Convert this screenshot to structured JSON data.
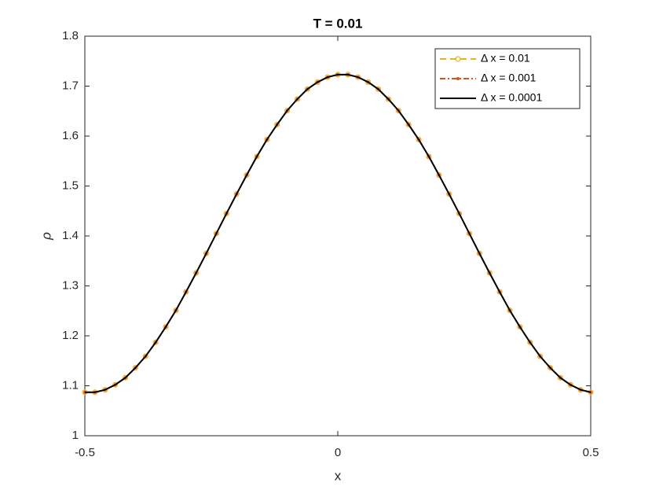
{
  "chart_data": {
    "type": "line",
    "title": "T = 0.01",
    "x_label": "x",
    "y_label": "ρ",
    "x": [
      -0.5,
      -0.48,
      -0.46,
      -0.44,
      -0.42,
      -0.4,
      -0.38,
      -0.36,
      -0.34,
      -0.32,
      -0.3,
      -0.28,
      -0.26,
      -0.24,
      -0.22,
      -0.2,
      -0.18,
      -0.16,
      -0.14,
      -0.12,
      -0.1,
      -0.08,
      -0.06,
      -0.04,
      -0.02,
      0,
      0.02,
      0.04,
      0.06,
      0.08,
      0.1,
      0.12,
      0.14,
      0.16,
      0.18,
      0.2,
      0.22,
      0.24,
      0.26,
      0.28,
      0.3,
      0.32,
      0.34,
      0.36,
      0.38,
      0.4,
      0.42,
      0.44,
      0.46,
      0.48,
      0.5
    ],
    "series": [
      {
        "name": "Δ x = 0.01",
        "color": "#EDB120",
        "dash": "8 5",
        "marker": "circle",
        "values": [
          1.087,
          1.087,
          1.092,
          1.102,
          1.116,
          1.136,
          1.159,
          1.187,
          1.218,
          1.251,
          1.288,
          1.326,
          1.365,
          1.405,
          1.445,
          1.484,
          1.522,
          1.559,
          1.593,
          1.623,
          1.651,
          1.674,
          1.694,
          1.708,
          1.718,
          1.723,
          1.723,
          1.718,
          1.708,
          1.694,
          1.674,
          1.651,
          1.623,
          1.593,
          1.559,
          1.522,
          1.484,
          1.445,
          1.405,
          1.365,
          1.326,
          1.288,
          1.251,
          1.218,
          1.187,
          1.159,
          1.136,
          1.116,
          1.102,
          1.092,
          1.087
        ]
      },
      {
        "name": "Δ x = 0.001",
        "color": "#D95319",
        "dash": "7 3 2 3",
        "marker": "dot",
        "values": [
          1.087,
          1.087,
          1.092,
          1.102,
          1.116,
          1.136,
          1.159,
          1.187,
          1.218,
          1.251,
          1.288,
          1.326,
          1.365,
          1.405,
          1.445,
          1.484,
          1.522,
          1.559,
          1.593,
          1.623,
          1.651,
          1.674,
          1.694,
          1.708,
          1.718,
          1.723,
          1.723,
          1.718,
          1.708,
          1.694,
          1.674,
          1.651,
          1.623,
          1.593,
          1.559,
          1.522,
          1.484,
          1.445,
          1.405,
          1.365,
          1.326,
          1.288,
          1.251,
          1.218,
          1.187,
          1.159,
          1.136,
          1.116,
          1.102,
          1.092,
          1.087
        ]
      },
      {
        "name": "Δ x = 0.0001",
        "color": "#000000",
        "dash": "none",
        "marker": "none",
        "values": [
          1.087,
          1.087,
          1.092,
          1.102,
          1.116,
          1.136,
          1.159,
          1.187,
          1.218,
          1.251,
          1.288,
          1.326,
          1.365,
          1.405,
          1.445,
          1.484,
          1.522,
          1.559,
          1.593,
          1.623,
          1.651,
          1.674,
          1.694,
          1.708,
          1.718,
          1.723,
          1.723,
          1.718,
          1.708,
          1.694,
          1.674,
          1.651,
          1.623,
          1.593,
          1.559,
          1.522,
          1.484,
          1.445,
          1.405,
          1.365,
          1.326,
          1.288,
          1.251,
          1.218,
          1.187,
          1.159,
          1.136,
          1.116,
          1.102,
          1.092,
          1.087
        ]
      }
    ],
    "xlim": [
      -0.5,
      0.5
    ],
    "xticks": [
      -0.5,
      0,
      0.5
    ],
    "ylim": [
      1,
      1.8
    ],
    "yticks": [
      1,
      1.1,
      1.2,
      1.3,
      1.4,
      1.5,
      1.6,
      1.7,
      1.8
    ],
    "legend_position": "northeast"
  }
}
